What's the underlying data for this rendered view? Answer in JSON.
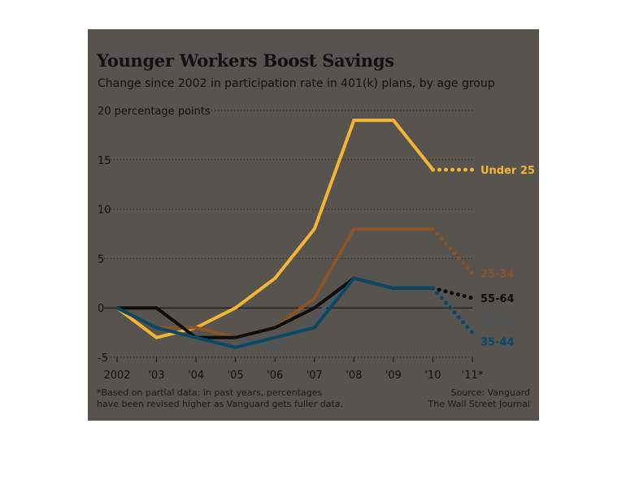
{
  "chart_data": {
    "type": "line",
    "title": "Younger Workers Boost Savings",
    "subtitle": "Change since 2002 in participation rate in 401(k) plans, by age group",
    "ylabel": "percentage points",
    "x": [
      2002,
      2003,
      2004,
      2005,
      2006,
      2007,
      2008,
      2009,
      2010,
      2011
    ],
    "x_tick_labels": [
      "2002",
      "'03",
      "'04",
      "'05",
      "'06",
      "'07",
      "'08",
      "'09",
      "'10",
      "'11*"
    ],
    "y_ticks": [
      20,
      15,
      10,
      5,
      0,
      -5
    ],
    "y_tick_labels": [
      "20 percentage points",
      "15",
      "10",
      "5",
      "0",
      "-5"
    ],
    "ylim": [
      -5,
      20
    ],
    "grid": "dotted horizontal",
    "partial_year": 2011,
    "series": [
      {
        "name": "Under 25",
        "color": "#f5b532",
        "values": [
          0,
          -3,
          -2,
          0,
          3,
          8,
          19,
          19,
          14,
          14
        ]
      },
      {
        "name": "25-34",
        "color": "#8a5428",
        "values": [
          0,
          -2,
          -2,
          -3,
          -2,
          1,
          8,
          8,
          8,
          3.5
        ]
      },
      {
        "name": "45-54",
        "color": "#4a5660",
        "values": [
          0,
          -2,
          -3,
          -3,
          -4,
          -1,
          3,
          2,
          2,
          -2
        ]
      },
      {
        "name": "55-64",
        "color": "#0d0d0d",
        "values": [
          0,
          0,
          -3,
          -3,
          -2,
          0,
          3,
          2,
          2,
          1
        ]
      },
      {
        "name": "35-44",
        "color": "#0a4868",
        "values": [
          0,
          -2,
          -3,
          -4,
          -3,
          -2,
          3,
          2,
          2,
          -2.5
        ]
      }
    ]
  },
  "footnote": {
    "line1": "*Based on partial data; in past years, percentages",
    "line2": "have been revised higher as Vanguard gets fuller data."
  },
  "source": {
    "line1": "Source: Vanguard",
    "line2": "The Wall Street Journal"
  }
}
